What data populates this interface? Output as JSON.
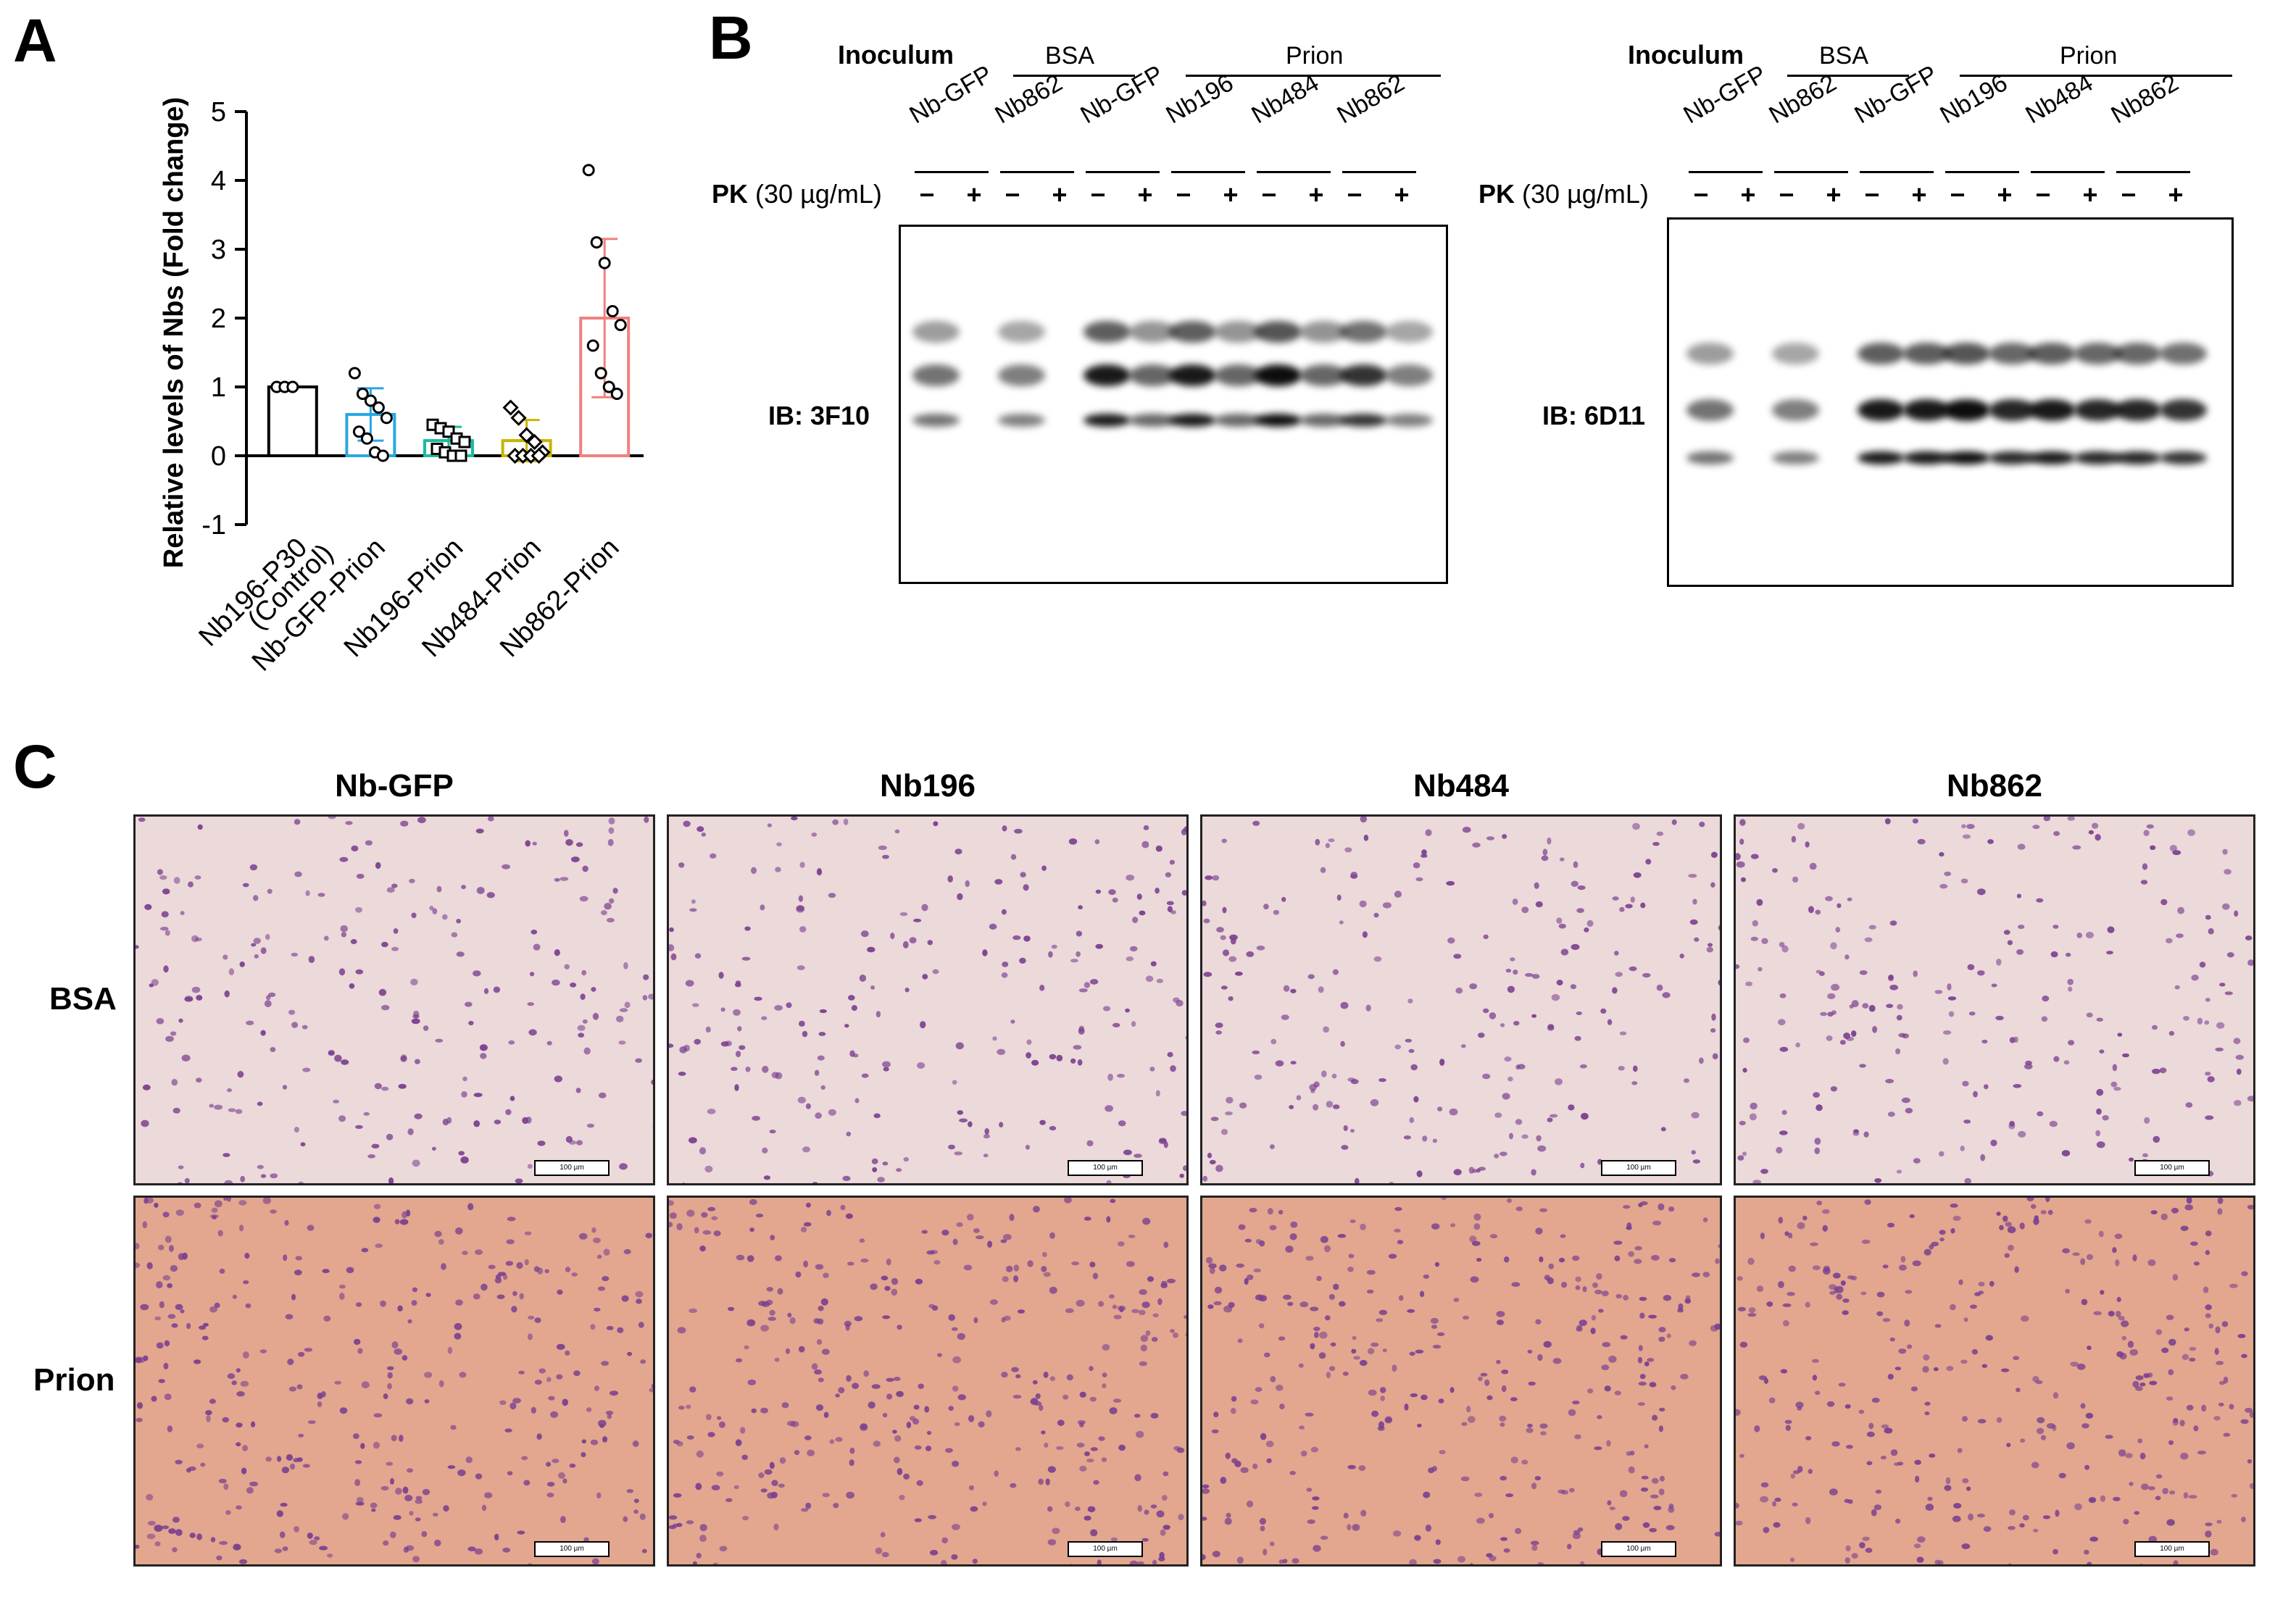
{
  "panels": {
    "a": "A",
    "b": "B",
    "c": "C"
  },
  "chart_data": {
    "type": "bar",
    "categories": [
      "Nb196-P30\n(Control)",
      "Nb-GFP-Prion",
      "Nb196-Prion",
      "Nb484-Prion",
      "Nb862-Prion"
    ],
    "category_lines": [
      [
        "Nb196-P30",
        "(Control)"
      ],
      [
        "Nb-GFP-Prion"
      ],
      [
        "Nb196-Prion"
      ],
      [
        "Nb484-Prion"
      ],
      [
        "Nb862-Prion"
      ]
    ],
    "values": [
      1.0,
      0.6,
      0.22,
      0.22,
      2.0
    ],
    "errors": [
      0.0,
      0.38,
      0.2,
      0.3,
      1.15
    ],
    "colors": [
      "#000000",
      "#29a8e0",
      "#1abc9c",
      "#c8b400",
      "#f08080"
    ],
    "points": [
      [
        1.0,
        1.0,
        1.0
      ],
      [
        1.2,
        0.9,
        0.8,
        0.7,
        0.55,
        0.35,
        0.25,
        0.05,
        0.0
      ],
      [
        0.45,
        0.4,
        0.35,
        0.25,
        0.2,
        0.1,
        0.05,
        0.0,
        0.0
      ],
      [
        0.7,
        0.55,
        0.3,
        0.2,
        0.05,
        0.0,
        0.0,
        0.0,
        0.0
      ],
      [
        4.15,
        3.1,
        2.8,
        2.1,
        1.9,
        1.6,
        1.2,
        1.0,
        0.9
      ]
    ],
    "markers": [
      "circle",
      "circle",
      "square",
      "diamond",
      "circle"
    ],
    "ylabel": "Relative levels of Nbs (Fold change)",
    "ylim": [
      -1,
      5
    ],
    "yticks": [
      "5",
      "4",
      "3",
      "2",
      "1",
      "0",
      "-1"
    ]
  },
  "blots": [
    {
      "inoculum": "Inoculum",
      "bsa": "BSA",
      "prion": "Prion",
      "lanes": [
        "Nb-GFP",
        "Nb862",
        "Nb-GFP",
        "Nb196",
        "Nb484",
        "Nb862"
      ],
      "pk_bold": "PK",
      "pk_conc": "(30 µg/mL)",
      "minus": "−",
      "plus": "+",
      "ib": "IB: 3F10"
    },
    {
      "inoculum": "Inoculum",
      "bsa": "BSA",
      "prion": "Prion",
      "lanes": [
        "Nb-GFP",
        "Nb862",
        "Nb-GFP",
        "Nb196",
        "Nb484",
        "Nb862"
      ],
      "pk_bold": "PK",
      "pk_conc": "(30 µg/mL)",
      "minus": "−",
      "plus": "+",
      "ib": "IB: 6D11"
    }
  ],
  "histology": {
    "columns": [
      "Nb-GFP",
      "Nb196",
      "Nb484",
      "Nb862"
    ],
    "rows": [
      "BSA",
      "Prion"
    ],
    "scale": "100 µm",
    "colors": {
      "bsa_bg": "#ecd9da",
      "prion_bg": "#e2a78e",
      "nuclei": "#7a3f8f"
    }
  }
}
